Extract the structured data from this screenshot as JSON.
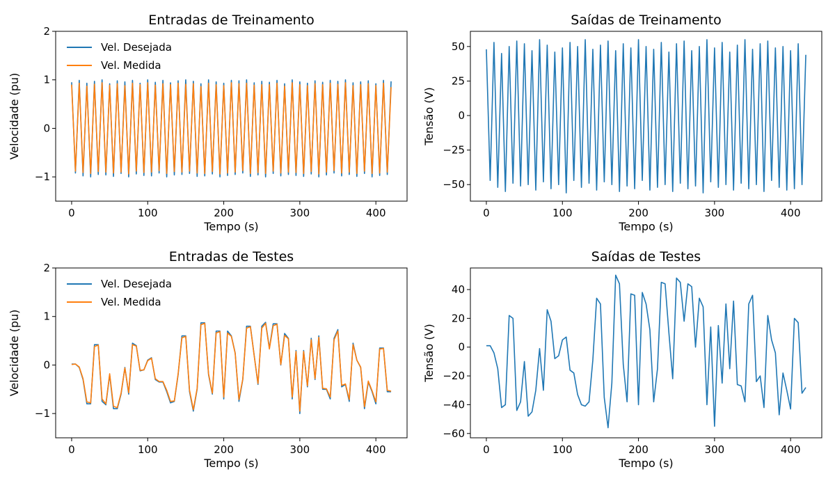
{
  "chart_data": [
    {
      "type": "line",
      "title": "Entradas de Treinamento",
      "xlabel": "Tempo (s)",
      "ylabel": "Velocidade (pu)",
      "xlim": [
        -21,
        441
      ],
      "ylim": [
        -1.5,
        2
      ],
      "xticks": [
        0,
        100,
        200,
        300,
        400
      ],
      "yticks": [
        {
          "value": -1,
          "label": "−1"
        },
        0,
        1,
        2
      ],
      "legend": "upper left",
      "x": [
        0,
        5,
        10,
        15,
        20,
        25,
        30,
        35,
        40,
        45,
        50,
        55,
        60,
        65,
        70,
        75,
        80,
        85,
        90,
        95,
        100,
        105,
        110,
        115,
        120,
        125,
        130,
        135,
        140,
        145,
        150,
        155,
        160,
        165,
        170,
        175,
        180,
        185,
        190,
        195,
        200,
        205,
        210,
        215,
        220,
        225,
        230,
        235,
        240,
        245,
        250,
        255,
        260,
        265,
        270,
        275,
        280,
        285,
        290,
        295,
        300,
        305,
        310,
        315,
        320,
        325,
        330,
        335,
        340,
        345,
        350,
        355,
        360,
        365,
        370,
        375,
        380,
        385,
        390,
        395,
        400,
        405,
        410,
        415,
        420
      ],
      "series": [
        {
          "name": "Vel. Desejada",
          "color": "#1f77b4",
          "values": [
            0.95,
            -0.92,
            0.99,
            -0.98,
            0.93,
            -1.0,
            0.97,
            -0.95,
            1.0,
            -0.96,
            0.92,
            -0.99,
            0.98,
            -0.93,
            0.96,
            -1.0,
            0.99,
            -0.94,
            0.93,
            -0.97,
            1.0,
            -0.98,
            0.95,
            -0.92,
            0.99,
            -1.0,
            0.94,
            -0.96,
            0.98,
            -0.95,
            1.0,
            -0.93,
            0.97,
            -0.99,
            0.92,
            -0.98,
            1.0,
            -0.94,
            0.96,
            -1.0,
            0.93,
            -0.97,
            0.99,
            -0.95,
            0.98,
            -0.92,
            1.0,
            -0.99,
            0.94,
            -0.96,
            0.97,
            -1.0,
            0.95,
            -0.93,
            0.99,
            -0.98,
            0.92,
            -0.95,
            1.0,
            -0.97,
            0.96,
            -0.99,
            0.93,
            -0.94,
            0.98,
            -1.0,
            0.95,
            -0.96,
            0.99,
            -0.92,
            0.97,
            -0.98,
            1.0,
            -0.95,
            0.94,
            -0.99,
            0.96,
            -0.93,
            0.98,
            -1.0,
            0.92,
            -0.97,
            0.99,
            -0.95,
            0.97
          ]
        },
        {
          "name": "Vel. Medida",
          "color": "#ff7f0e",
          "values": [
            0.9,
            -0.88,
            0.93,
            -0.91,
            0.87,
            -0.93,
            0.91,
            -0.89,
            0.94,
            -0.9,
            0.89,
            -0.92,
            0.92,
            -0.9,
            0.88,
            -0.94,
            0.93,
            -0.88,
            0.9,
            -0.91,
            0.94,
            -0.9,
            0.89,
            -0.87,
            0.92,
            -0.93,
            0.9,
            -0.89,
            0.93,
            -0.9,
            0.91,
            -0.88,
            0.92,
            -0.92,
            0.86,
            -0.93,
            0.93,
            -0.89,
            0.9,
            -0.94,
            0.88,
            -0.92,
            0.94,
            -0.9,
            0.92,
            -0.87,
            0.93,
            -0.93,
            0.89,
            -0.91,
            0.9,
            -0.93,
            0.9,
            -0.88,
            0.93,
            -0.92,
            0.87,
            -0.9,
            0.94,
            -0.91,
            0.9,
            -0.93,
            0.88,
            -0.89,
            0.92,
            -0.94,
            0.9,
            -0.9,
            0.93,
            -0.87,
            0.91,
            -0.92,
            0.94,
            -0.9,
            0.88,
            -0.93,
            0.9,
            -0.88,
            0.92,
            -0.93,
            0.88,
            -0.92,
            0.93,
            -0.9,
            0.85
          ]
        }
      ]
    },
    {
      "type": "line",
      "title": "Saídas de Treinamento",
      "xlabel": "Tempo (s)",
      "ylabel": "Tensão (V)",
      "xlim": [
        -21,
        441
      ],
      "ylim": [
        -62,
        61
      ],
      "xticks": [
        0,
        100,
        200,
        300,
        400
      ],
      "yticks": [
        {
          "value": -50,
          "label": "−50"
        },
        {
          "value": -25,
          "label": "−25"
        },
        0,
        25,
        50
      ],
      "x": [
        0,
        5,
        10,
        15,
        20,
        25,
        30,
        35,
        40,
        45,
        50,
        55,
        60,
        65,
        70,
        75,
        80,
        85,
        90,
        95,
        100,
        105,
        110,
        115,
        120,
        125,
        130,
        135,
        140,
        145,
        150,
        155,
        160,
        165,
        170,
        175,
        180,
        185,
        190,
        195,
        200,
        205,
        210,
        215,
        220,
        225,
        230,
        235,
        240,
        245,
        250,
        255,
        260,
        265,
        270,
        275,
        280,
        285,
        290,
        295,
        300,
        305,
        310,
        315,
        320,
        325,
        330,
        335,
        340,
        345,
        350,
        355,
        360,
        365,
        370,
        375,
        380,
        385,
        390,
        395,
        400,
        405,
        410,
        415,
        420
      ],
      "series": [
        {
          "name": "Tensão",
          "color": "#1f77b4",
          "values": [
            48,
            -47,
            53,
            -52,
            45,
            -55,
            50,
            -49,
            54,
            -51,
            52,
            -50,
            47,
            -54,
            55,
            -48,
            51,
            -53,
            46,
            -50,
            49,
            -56,
            53,
            -47,
            50,
            -52,
            55,
            -49,
            48,
            -54,
            51,
            -48,
            54,
            -50,
            47,
            -55,
            52,
            -51,
            49,
            -53,
            55,
            -47,
            50,
            -54,
            48,
            -52,
            53,
            -50,
            46,
            -55,
            52,
            -49,
            54,
            -53,
            47,
            -51,
            50,
            -56,
            55,
            -48,
            49,
            -52,
            53,
            -50,
            46,
            -54,
            51,
            -49,
            55,
            -53,
            48,
            -50,
            52,
            -55,
            54,
            -47,
            49,
            -52,
            50,
            -54,
            47,
            -53,
            52,
            -50,
            44
          ]
        }
      ]
    },
    {
      "type": "line",
      "title": "Entradas de Testes",
      "xlabel": "Tempo (s)",
      "ylabel": "Velocidade (pu)",
      "xlim": [
        -21,
        441
      ],
      "ylim": [
        -1.5,
        2
      ],
      "xticks": [
        0,
        100,
        200,
        300,
        400
      ],
      "yticks": [
        {
          "value": -1,
          "label": "−1"
        },
        0,
        1,
        2
      ],
      "legend": "upper left",
      "x": [
        0,
        5,
        10,
        15,
        20,
        25,
        30,
        35,
        40,
        45,
        50,
        55,
        60,
        65,
        70,
        75,
        80,
        85,
        90,
        95,
        100,
        105,
        110,
        115,
        120,
        125,
        130,
        135,
        140,
        145,
        150,
        155,
        160,
        165,
        170,
        175,
        180,
        185,
        190,
        195,
        200,
        205,
        210,
        215,
        220,
        225,
        230,
        235,
        240,
        245,
        250,
        255,
        260,
        265,
        270,
        275,
        280,
        285,
        290,
        295,
        300,
        305,
        310,
        315,
        320,
        325,
        330,
        335,
        340,
        345,
        350,
        355,
        360,
        365,
        370,
        375,
        380,
        385,
        390,
        395,
        400,
        405,
        410,
        415,
        420
      ],
      "series": [
        {
          "name": "Vel. Desejada",
          "color": "#1f77b4",
          "values": [
            0.02,
            0.02,
            -0.05,
            -0.3,
            -0.8,
            -0.8,
            0.42,
            0.42,
            -0.75,
            -0.82,
            -0.2,
            -0.9,
            -0.9,
            -0.6,
            -0.05,
            -0.6,
            0.45,
            0.4,
            -0.12,
            -0.1,
            0.1,
            0.15,
            -0.3,
            -0.35,
            -0.35,
            -0.55,
            -0.78,
            -0.75,
            -0.2,
            0.6,
            0.6,
            -0.55,
            -0.95,
            -0.5,
            0.87,
            0.87,
            -0.2,
            -0.6,
            0.7,
            0.7,
            -0.7,
            0.7,
            0.6,
            0.25,
            -0.75,
            -0.3,
            0.8,
            0.8,
            0.2,
            -0.4,
            0.8,
            0.88,
            0.35,
            0.85,
            0.85,
            0.0,
            0.65,
            0.55,
            -0.7,
            0.3,
            -1.0,
            0.3,
            -0.45,
            0.55,
            -0.3,
            0.6,
            -0.5,
            -0.5,
            -0.7,
            0.55,
            0.73,
            -0.45,
            -0.4,
            -0.75,
            0.45,
            0.1,
            -0.05,
            -0.9,
            -0.35,
            -0.55,
            -0.8,
            0.35,
            0.35,
            -0.55,
            -0.55
          ]
        },
        {
          "name": "Vel. Medida",
          "color": "#ff7f0e",
          "values": [
            0.01,
            0.02,
            -0.04,
            -0.28,
            -0.76,
            -0.78,
            0.38,
            0.41,
            -0.7,
            -0.8,
            -0.18,
            -0.85,
            -0.88,
            -0.58,
            -0.06,
            -0.57,
            0.42,
            0.39,
            -0.11,
            -0.1,
            0.09,
            0.14,
            -0.28,
            -0.34,
            -0.34,
            -0.52,
            -0.75,
            -0.74,
            -0.18,
            0.56,
            0.59,
            -0.52,
            -0.92,
            -0.48,
            0.83,
            0.86,
            -0.18,
            -0.58,
            0.66,
            0.69,
            -0.66,
            0.66,
            0.59,
            0.24,
            -0.71,
            -0.29,
            0.76,
            0.79,
            0.19,
            -0.38,
            0.76,
            0.86,
            0.33,
            0.81,
            0.84,
            0.01,
            0.61,
            0.54,
            -0.66,
            0.28,
            -0.95,
            0.28,
            -0.43,
            0.52,
            -0.28,
            0.57,
            -0.48,
            -0.49,
            -0.66,
            0.52,
            0.7,
            -0.42,
            -0.39,
            -0.71,
            0.42,
            0.1,
            -0.04,
            -0.86,
            -0.33,
            -0.53,
            -0.76,
            0.33,
            0.34,
            -0.52,
            -0.54
          ]
        }
      ]
    },
    {
      "type": "line",
      "title": "Saídas de Testes",
      "xlabel": "Tempo (s)",
      "ylabel": "Tensão (V)",
      "xlim": [
        -21,
        441
      ],
      "ylim": [
        -63,
        55
      ],
      "xticks": [
        0,
        100,
        200,
        300,
        400
      ],
      "yticks": [
        {
          "value": -60,
          "label": "−60"
        },
        {
          "value": -40,
          "label": "−40"
        },
        {
          "value": -20,
          "label": "−20"
        },
        0,
        20,
        40
      ],
      "x": [
        0,
        5,
        10,
        15,
        20,
        25,
        30,
        35,
        40,
        45,
        50,
        55,
        60,
        65,
        70,
        75,
        80,
        85,
        90,
        95,
        100,
        105,
        110,
        115,
        120,
        125,
        130,
        135,
        140,
        145,
        150,
        155,
        160,
        165,
        170,
        175,
        180,
        185,
        190,
        195,
        200,
        205,
        210,
        215,
        220,
        225,
        230,
        235,
        240,
        245,
        250,
        255,
        260,
        265,
        270,
        275,
        280,
        285,
        290,
        295,
        300,
        305,
        310,
        315,
        320,
        325,
        330,
        335,
        340,
        345,
        350,
        355,
        360,
        365,
        370,
        375,
        380,
        385,
        390,
        395,
        400,
        405,
        410,
        415,
        420
      ],
      "series": [
        {
          "name": "Tensão",
          "color": "#1f77b4",
          "values": [
            1,
            1,
            -4,
            -15,
            -42,
            -40,
            22,
            20,
            -44,
            -38,
            -10,
            -48,
            -45,
            -30,
            -1,
            -30,
            26,
            18,
            -8,
            -6,
            5,
            7,
            -16,
            -18,
            -33,
            -40,
            -41,
            -38,
            -9,
            34,
            30,
            -35,
            -56,
            -25,
            50,
            44,
            -12,
            -38,
            37,
            36,
            -40,
            38,
            30,
            12,
            -38,
            -15,
            45,
            44,
            10,
            -22,
            48,
            45,
            18,
            44,
            42,
            0,
            34,
            28,
            -40,
            14,
            -55,
            15,
            -25,
            30,
            -15,
            32,
            -26,
            -27,
            -38,
            30,
            36,
            -24,
            -20,
            -42,
            22,
            5,
            -4,
            -47,
            -18,
            -30,
            -43,
            20,
            17,
            -32,
            -28
          ]
        }
      ]
    }
  ]
}
